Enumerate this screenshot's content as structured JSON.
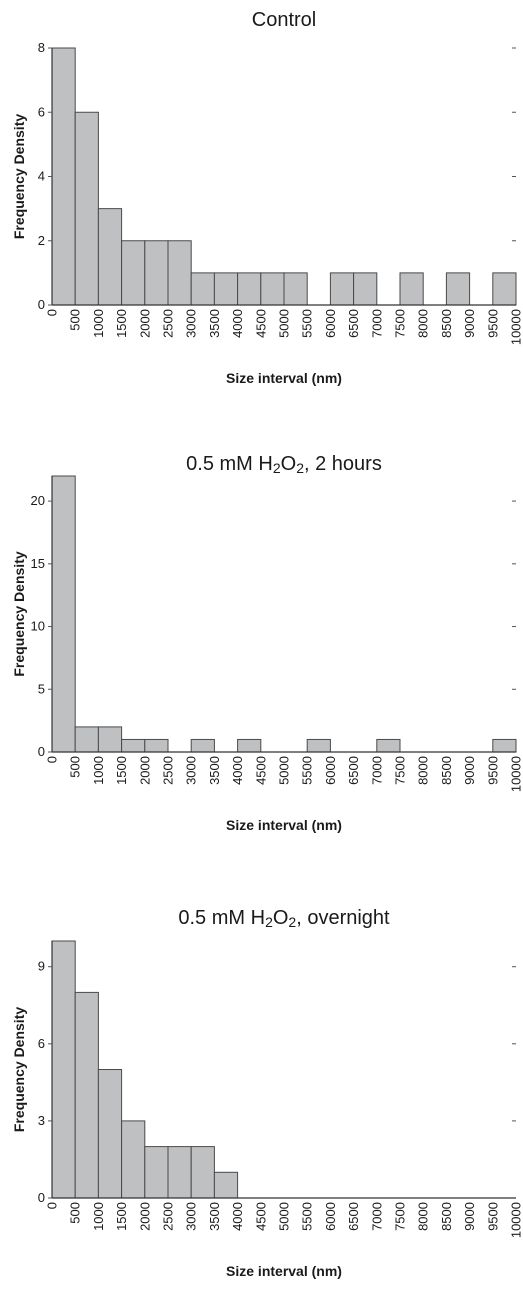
{
  "chart_data": [
    {
      "type": "bar",
      "title": "Control",
      "title_main": "Control",
      "title_sub": "",
      "title_rest": "",
      "xlabel": "Size interval (nm)",
      "ylabel": "Frequency Density",
      "xlim": [
        0,
        10000
      ],
      "bin_width": 500,
      "ylim": [
        0,
        8
      ],
      "yticks": [
        0,
        2,
        4,
        6,
        8
      ],
      "xticks": [
        0,
        500,
        1000,
        1500,
        2000,
        2500,
        3000,
        3500,
        4000,
        4500,
        5000,
        5500,
        6000,
        6500,
        7000,
        7500,
        8000,
        8500,
        9000,
        9500,
        10000
      ],
      "values": [
        8,
        6,
        3,
        2,
        2,
        2,
        1,
        1,
        1,
        1,
        1,
        0,
        1,
        1,
        0,
        1,
        0,
        1,
        0,
        1
      ]
    },
    {
      "type": "bar",
      "title": "0.5 mM H2O2, 2 hours",
      "title_main": "0.5 mM H",
      "title_sub": "2",
      "title_mid": "O",
      "title_sub2": "2",
      "title_rest": ", 2 hours",
      "xlabel": "Size interval (nm)",
      "ylabel": "Frequency Density",
      "xlim": [
        0,
        10000
      ],
      "bin_width": 500,
      "ylim": [
        0,
        22
      ],
      "yticks": [
        0,
        5,
        10,
        15,
        20
      ],
      "xticks": [
        0,
        500,
        1000,
        1500,
        2000,
        2500,
        3000,
        3500,
        4000,
        4500,
        5000,
        5500,
        6000,
        6500,
        7000,
        7500,
        8000,
        8500,
        9000,
        9500,
        10000
      ],
      "values": [
        22,
        2,
        2,
        1,
        1,
        0,
        1,
        0,
        1,
        0,
        0,
        1,
        0,
        0,
        1,
        0,
        0,
        0,
        0,
        1
      ]
    },
    {
      "type": "bar",
      "title": "0.5 mM H2O2, overnight",
      "title_main": "0.5 mM H",
      "title_sub": "2",
      "title_mid": "O",
      "title_sub2": "2",
      "title_rest": ", overnight",
      "xlabel": "Size interval (nm)",
      "ylabel": "Frequency Density",
      "xlim": [
        0,
        10000
      ],
      "bin_width": 500,
      "ylim": [
        0,
        10
      ],
      "yticks": [
        0,
        3,
        6,
        9
      ],
      "xticks": [
        0,
        500,
        1000,
        1500,
        2000,
        2500,
        3000,
        3500,
        4000,
        4500,
        5000,
        5500,
        6000,
        6500,
        7000,
        7500,
        8000,
        8500,
        9000,
        9500,
        10000
      ],
      "values": [
        10,
        8,
        5,
        3,
        2,
        2,
        2,
        1,
        0,
        0,
        0,
        0,
        0,
        0,
        0,
        0,
        0,
        0,
        0,
        0
      ]
    }
  ]
}
